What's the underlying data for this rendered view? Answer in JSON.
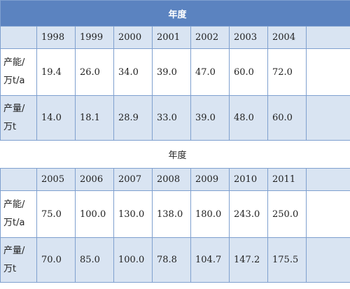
{
  "blocks": [
    {
      "header": "年度",
      "years": [
        "1998",
        "1999",
        "2000",
        "2001",
        "2002",
        "2003",
        "2004"
      ],
      "rows": [
        {
          "label": [
            "产能/",
            "万t/a"
          ],
          "values": [
            "19.4",
            "26.0",
            "34.0",
            "39.0",
            "47.0",
            "60.0",
            "72.0"
          ]
        },
        {
          "label": [
            "产量/",
            "万t"
          ],
          "values": [
            "14.0",
            "18.1",
            "28.9",
            "33.0",
            "39.0",
            "48.0",
            "60.0"
          ]
        }
      ]
    },
    {
      "header": "年度",
      "years": [
        "2005",
        "2006",
        "2007",
        "2008",
        "2009",
        "2010",
        "2011"
      ],
      "rows": [
        {
          "label": [
            "产能/",
            "万t/a"
          ],
          "values": [
            "75.0",
            "100.0",
            "130.0",
            "138.0",
            "180.0",
            "243.0",
            "250.0"
          ]
        },
        {
          "label": [
            "产量/",
            "万t"
          ],
          "values": [
            "70.0",
            "85.0",
            "100.0",
            "78.8",
            "104.7",
            "147.2",
            "175.5"
          ]
        }
      ]
    }
  ]
}
